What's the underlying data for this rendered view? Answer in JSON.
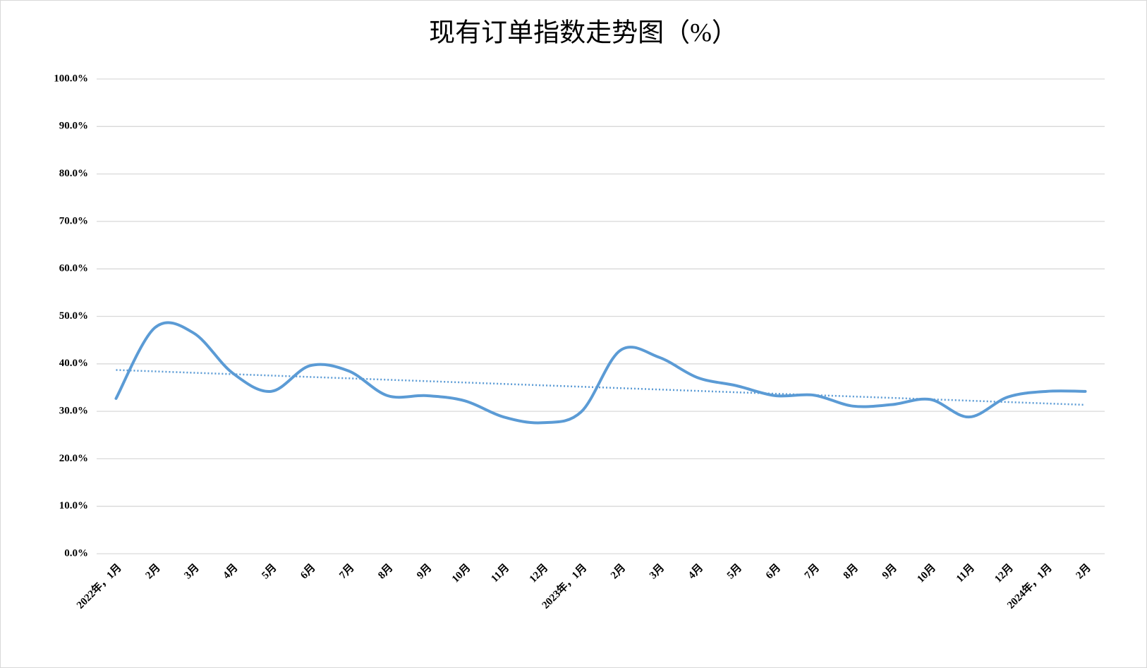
{
  "chart_data": {
    "type": "line",
    "title": "现有订单指数走势图（%）",
    "categories": [
      "2022年，1月",
      "2月",
      "3月",
      "4月",
      "5月",
      "6月",
      "7月",
      "8月",
      "9月",
      "10月",
      "11月",
      "12月",
      "2023年，1月",
      "2月",
      "3月",
      "4月",
      "5月",
      "6月",
      "7月",
      "8月",
      "9月",
      "10月",
      "11月",
      "12月",
      "2024年，1月",
      "2月"
    ],
    "series": [
      {
        "color": "#5b9bd5",
        "values": [
          32.7,
          47.6,
          46.5,
          38.1,
          34.2,
          39.6,
          38.5,
          33.3,
          33.3,
          32.2,
          28.8,
          27.6,
          29.9,
          42.8,
          41.4,
          37.1,
          35.4,
          33.3,
          33.4,
          31.1,
          31.4,
          32.5,
          28.8,
          33.0,
          34.2,
          34.2
        ]
      }
    ],
    "trendline": true,
    "ylim": [
      0,
      100
    ],
    "yticks": [
      {
        "value": 0,
        "label": "0.0%"
      },
      {
        "value": 10,
        "label": "10.0%"
      },
      {
        "value": 20,
        "label": "20.0%"
      },
      {
        "value": 30,
        "label": "30.0%"
      },
      {
        "value": 40,
        "label": "40.0%"
      },
      {
        "value": 50,
        "label": "50.0%"
      },
      {
        "value": 60,
        "label": "60.0%"
      },
      {
        "value": 70,
        "label": "70.0%"
      },
      {
        "value": 80,
        "label": "80.0%"
      },
      {
        "value": 90,
        "label": "90.0%"
      },
      {
        "value": 100,
        "label": "100.0%"
      }
    ],
    "grid": true
  }
}
